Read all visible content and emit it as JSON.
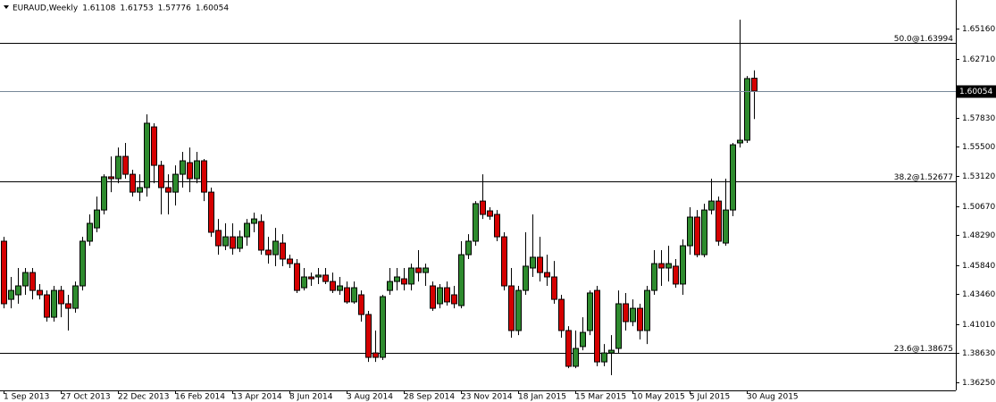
{
  "chart_data": {
    "type": "candlestick",
    "title": "EURAUD,Weekly",
    "categories": [
      "1 Sep 2013",
      null,
      null,
      null,
      null,
      null,
      null,
      null,
      "27 Oct 2013",
      null,
      null,
      null,
      null,
      null,
      null,
      null,
      "22 Dec 2013",
      null,
      null,
      null,
      null,
      null,
      null,
      null,
      "16 Feb 2014",
      null,
      null,
      null,
      null,
      null,
      null,
      null,
      "13 Apr 2014",
      null,
      null,
      null,
      null,
      null,
      null,
      null,
      "8 Jun 2014",
      null,
      null,
      null,
      null,
      null,
      null,
      null,
      "3 Aug 2014",
      null,
      null,
      null,
      null,
      null,
      null,
      null,
      "28 Sep 2014",
      null,
      null,
      null,
      null,
      null,
      null,
      null,
      "23 Nov 2014",
      null,
      null,
      null,
      null,
      null,
      null,
      null,
      "18 Jan 2015",
      null,
      null,
      null,
      null,
      null,
      null,
      null,
      "15 Mar 2015",
      null,
      null,
      null,
      null,
      null,
      null,
      null,
      "10 May 2015",
      null,
      null,
      null,
      null,
      null,
      null,
      null,
      "5 Jul 2015",
      null,
      null,
      null,
      null,
      null,
      null,
      null,
      "30 Aug 2015",
      null
    ],
    "open": [
      1.4779,
      1.4304,
      1.4341,
      1.4414,
      1.4523,
      1.4377,
      1.4341,
      1.4158,
      1.4377,
      1.4268,
      1.4231,
      1.4414,
      1.4779,
      1.4888,
      1.5034,
      1.5305,
      1.529,
      1.5472,
      1.5326,
      1.518,
      1.5217,
      1.5713,
      1.5399,
      1.5217,
      1.518,
      1.5326,
      1.5421,
      1.529,
      1.5436,
      1.518,
      1.4867,
      1.4742,
      1.4815,
      1.4721,
      1.4815,
      1.4925,
      1.494,
      1.4706,
      1.4669,
      1.4764,
      1.4633,
      1.4596,
      1.4399,
      1.4487,
      1.4487,
      1.4502,
      1.445,
      1.4377,
      1.4399,
      1.4283,
      1.4341,
      1.418,
      1.3866,
      1.383,
      1.4377,
      1.445,
      1.4472,
      1.4429,
      1.456,
      1.4523,
      1.4414,
      1.4268,
      1.4399,
      1.4341,
      1.4253,
      1.4669,
      1.4779,
      1.5107,
      1.5027,
      1.4998,
      1.4815,
      1.4414,
      1.4049,
      1.4377,
      1.456,
      1.4648,
      1.4523,
      1.4487,
      1.4304,
      1.4049,
      1.3757,
      1.3918,
      1.4049,
      1.4377,
      1.3793,
      1.3866,
      1.3903,
      1.4268,
      1.4122,
      1.4231,
      1.4049,
      1.4377,
      1.4596,
      1.456,
      1.4575,
      1.4429,
      1.4742,
      1.4976,
      1.4669,
      1.5034,
      1.5107,
      1.4764,
      1.5034,
      1.5582,
      1.5604,
      1.61108
    ],
    "high": [
      1.4815,
      1.4487,
      1.456,
      1.456,
      1.456,
      1.4429,
      1.4377,
      1.4414,
      1.4414,
      1.4341,
      1.445,
      1.4815,
      1.4998,
      1.5144,
      1.5326,
      1.5472,
      1.5545,
      1.5582,
      1.5363,
      1.5326,
      1.5816,
      1.5743,
      1.5436,
      1.5326,
      1.5399,
      1.5509,
      1.5545,
      1.5509,
      1.5451,
      1.5217,
      1.4961,
      1.4925,
      1.4925,
      1.4867,
      1.4961,
      1.5013,
      1.4998,
      1.4815,
      1.4888,
      1.4837,
      1.4669,
      1.4633,
      1.456,
      1.4523,
      1.456,
      1.456,
      1.4523,
      1.4487,
      1.445,
      1.445,
      1.4377,
      1.421,
      1.4049,
      1.4341,
      1.456,
      1.456,
      1.456,
      1.4596,
      1.4706,
      1.4596,
      1.445,
      1.4429,
      1.445,
      1.4414,
      1.4779,
      1.4837,
      1.5107,
      1.5326,
      1.5056,
      1.5034,
      1.4852,
      1.456,
      1.4414,
      1.4852,
      1.4998,
      1.4815,
      1.4669,
      1.4618,
      1.4341,
      1.4085,
      1.4049,
      1.4158,
      1.4377,
      1.4414,
      1.3939,
      1.4012,
      1.4377,
      1.4356,
      1.4304,
      1.4268,
      1.4414,
      1.4706,
      1.4706,
      1.4742,
      1.4633,
      1.4794,
      1.5056,
      1.5034,
      1.5086,
      1.529,
      1.5144,
      1.529,
      1.5582,
      1.6589,
      1.6129,
      1.61753
    ],
    "low": [
      1.4231,
      1.4231,
      1.4268,
      1.4341,
      1.4304,
      1.4304,
      1.4122,
      1.4122,
      1.4158,
      1.4049,
      1.4195,
      1.4377,
      1.4742,
      1.4852,
      1.4998,
      1.518,
      1.5253,
      1.529,
      1.5144,
      1.5107,
      1.5144,
      1.5253,
      1.4998,
      1.4998,
      1.5071,
      1.5217,
      1.518,
      1.5253,
      1.5107,
      1.4815,
      1.4669,
      1.4706,
      1.4669,
      1.4691,
      1.4742,
      1.4852,
      1.4669,
      1.4596,
      1.4575,
      1.4575,
      1.456,
      1.4356,
      1.4377,
      1.4414,
      1.4429,
      1.4429,
      1.4356,
      1.4341,
      1.4268,
      1.4268,
      1.4122,
      1.3793,
      1.3793,
      1.3808,
      1.4341,
      1.4377,
      1.4377,
      1.4377,
      1.445,
      1.4414,
      1.421,
      1.4231,
      1.4253,
      1.4231,
      1.4231,
      1.4633,
      1.4742,
      1.4961,
      1.4954,
      1.4779,
      1.4377,
      1.3991,
      1.4012,
      1.4341,
      1.4487,
      1.445,
      1.4414,
      1.4268,
      1.3991,
      1.3742,
      1.3742,
      1.3888,
      1.4012,
      1.3757,
      1.3757,
      1.3684,
      1.3866,
      1.4049,
      1.4085,
      1.3976,
      1.3939,
      1.4341,
      1.4414,
      1.445,
      1.4399,
      1.4341,
      1.4669,
      1.4648,
      1.4648,
      1.4998,
      1.4742,
      1.4742,
      1.4983,
      1.5545,
      1.5582,
      1.57776
    ],
    "close": [
      1.4268,
      1.4377,
      1.4414,
      1.4523,
      1.4377,
      1.4341,
      1.4158,
      1.4377,
      1.4268,
      1.4231,
      1.4414,
      1.4779,
      1.4925,
      1.5034,
      1.5305,
      1.529,
      1.5472,
      1.5326,
      1.518,
      1.5217,
      1.5743,
      1.5399,
      1.5217,
      1.518,
      1.5326,
      1.5436,
      1.529,
      1.5436,
      1.518,
      1.4852,
      1.4742,
      1.4815,
      1.4721,
      1.4815,
      1.4925,
      1.4961,
      1.4706,
      1.4669,
      1.4779,
      1.4633,
      1.4596,
      1.4377,
      1.4487,
      1.4472,
      1.4502,
      1.445,
      1.4377,
      1.4414,
      1.4283,
      1.4399,
      1.418,
      1.383,
      1.383,
      1.4326,
      1.445,
      1.4487,
      1.4429,
      1.456,
      1.4523,
      1.456,
      1.4231,
      1.4399,
      1.4283,
      1.4268,
      1.4669,
      1.4779,
      1.5086,
      1.4998,
      1.4983,
      1.4815,
      1.4414,
      1.4049,
      1.4377,
      1.4575,
      1.4648,
      1.4523,
      1.4487,
      1.4304,
      1.4049,
      1.3757,
      1.3903,
      1.4034,
      1.4356,
      1.3793,
      1.3866,
      1.3888,
      1.4268,
      1.4122,
      1.4231,
      1.4049,
      1.4377,
      1.4596,
      1.456,
      1.4596,
      1.4429,
      1.4742,
      1.4976,
      1.4669,
      1.5034,
      1.5107,
      1.4779,
      1.5034,
      1.5567,
      1.5604,
      1.6108,
      1.60054
    ],
    "up_color": "#2e8b2e",
    "down_color": "#d40000",
    "levels": [
      {
        "value": 1.63994,
        "label": "50.0@1.63994"
      },
      {
        "value": 1.52677,
        "label": "38.2@1.52677"
      },
      {
        "value": 1.38675,
        "label": "23.6@1.38675"
      }
    ],
    "ylim": [
      1.356,
      1.675
    ],
    "yticks": [
      {
        "value": 1.6516,
        "label": "1.65160"
      },
      {
        "value": 1.6271,
        "label": "1.62710"
      },
      {
        "value": 1.5783,
        "label": "1.57830"
      },
      {
        "value": 1.555,
        "label": "1.55500"
      },
      {
        "value": 1.5312,
        "label": "1.53120"
      },
      {
        "value": 1.5067,
        "label": "1.50670"
      },
      {
        "value": 1.4829,
        "label": "1.48290"
      },
      {
        "value": 1.4584,
        "label": "1.45840"
      },
      {
        "value": 1.4346,
        "label": "1.43460"
      },
      {
        "value": 1.4101,
        "label": "1.41010"
      },
      {
        "value": 1.3863,
        "label": "1.38630"
      },
      {
        "value": 1.3625,
        "label": "1.36250"
      }
    ],
    "grid": false
  }
}
